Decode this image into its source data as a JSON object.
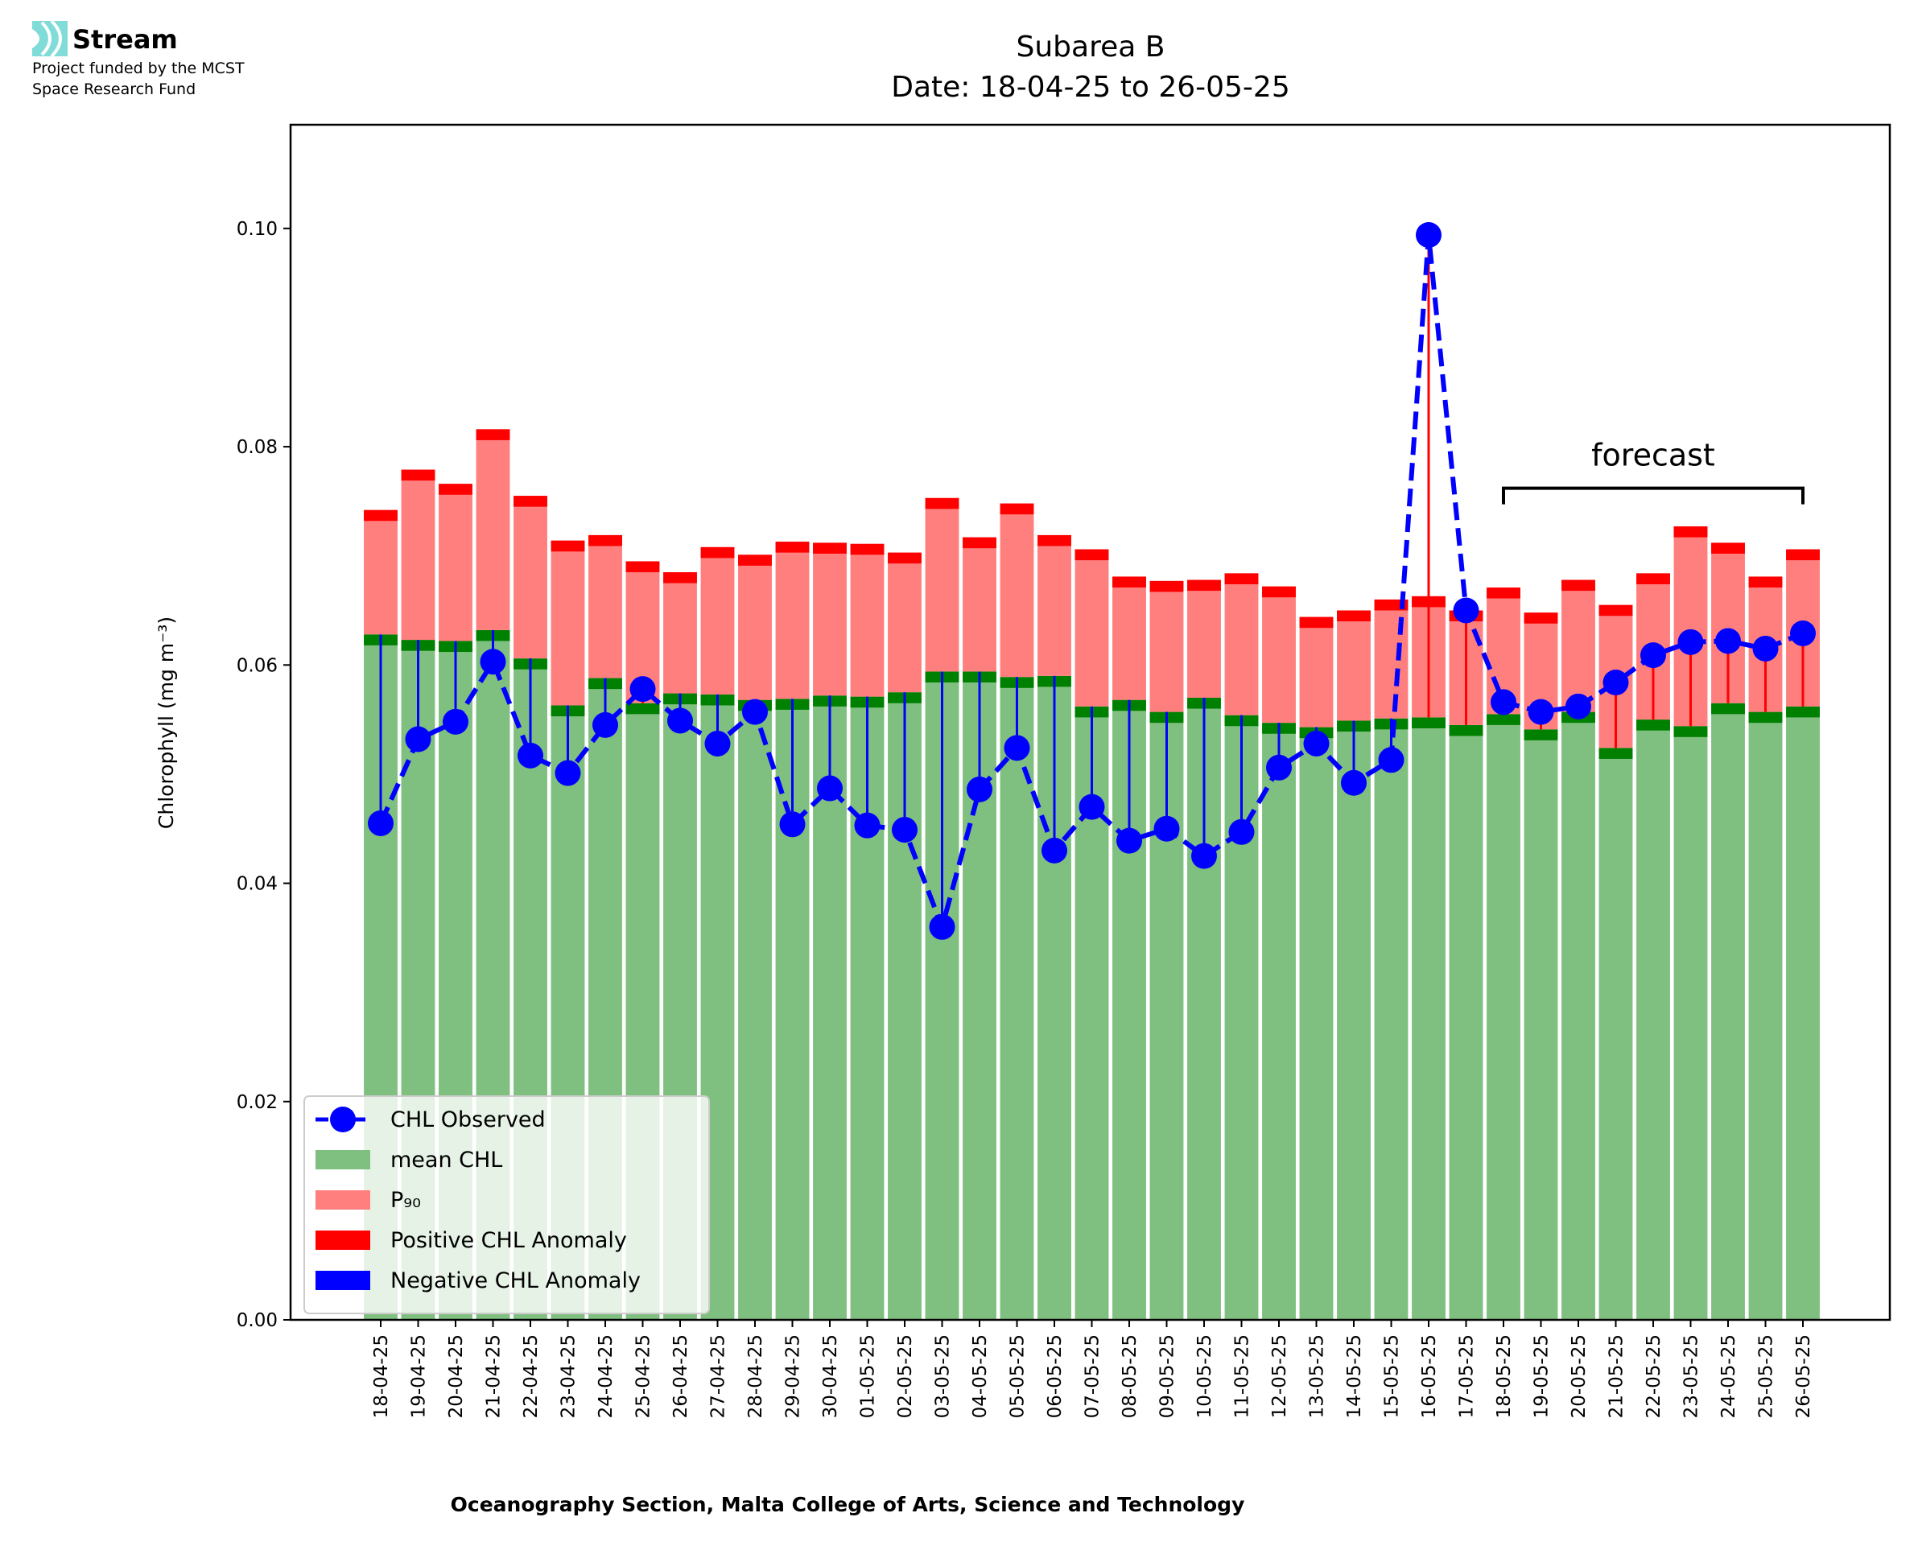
{
  "branding": {
    "logo_text": "Stream",
    "funding_line1": "Project funded by the MCST",
    "funding_line2": "Space Research Fund",
    "logo_color": "#7fdcd8"
  },
  "chart_data": {
    "type": "bar",
    "title": "Subarea B",
    "subtitle": "Date: 18-04-25 to 26-05-25",
    "xlabel": "Oceanography Section, Malta College of Arts, Science and Technology",
    "ylabel": "Chlorophyll (mg m⁻³)",
    "ylim": [
      0,
      0.1095
    ],
    "yticks": [
      "0.00",
      "0.02",
      "0.04",
      "0.06",
      "0.08",
      "0.10"
    ],
    "grid": false,
    "legend_placement": "lower-left",
    "categories": [
      "18-04-25",
      "19-04-25",
      "20-04-25",
      "21-04-25",
      "22-04-25",
      "23-04-25",
      "24-04-25",
      "25-04-25",
      "26-04-25",
      "27-04-25",
      "28-04-25",
      "29-04-25",
      "30-04-25",
      "01-05-25",
      "02-05-25",
      "03-05-25",
      "04-05-25",
      "05-05-25",
      "06-05-25",
      "07-05-25",
      "08-05-25",
      "09-05-25",
      "10-05-25",
      "11-05-25",
      "12-05-25",
      "13-05-25",
      "14-05-25",
      "15-05-25",
      "16-05-25",
      "17-05-25",
      "18-05-25",
      "19-05-25",
      "20-05-25",
      "21-05-25",
      "22-05-25",
      "23-05-25",
      "24-05-25",
      "25-05-25",
      "26-05-25"
    ],
    "series": [
      {
        "name": "CHL Observed",
        "style": "dashed line with circle markers",
        "color": "#0000ff",
        "values": [
          0.0455,
          0.0532,
          0.0548,
          0.0603,
          0.0517,
          0.0501,
          0.0545,
          0.0578,
          0.0549,
          0.0528,
          0.0557,
          0.0454,
          0.0487,
          0.0453,
          0.0449,
          0.036,
          0.0486,
          0.0524,
          0.043,
          0.047,
          0.0439,
          0.045,
          0.0425,
          0.0447,
          0.0506,
          0.0528,
          0.0492,
          0.0513,
          0.0994,
          0.065,
          0.0566,
          0.0557,
          0.0562,
          0.0584,
          0.0609,
          0.0621,
          0.0622,
          0.0615,
          0.0629
        ]
      },
      {
        "name": "mean CHL",
        "color": "#7fbf7f",
        "marker_color": "#008000",
        "values": [
          0.0628,
          0.0623,
          0.0622,
          0.0632,
          0.0606,
          0.0563,
          0.0588,
          0.0565,
          0.0574,
          0.0573,
          0.0568,
          0.0569,
          0.0572,
          0.0571,
          0.0575,
          0.0594,
          0.0594,
          0.0589,
          0.059,
          0.0562,
          0.0568,
          0.0557,
          0.057,
          0.0554,
          0.0547,
          0.0543,
          0.0549,
          0.0551,
          0.0552,
          0.0545,
          0.0555,
          0.0541,
          0.0557,
          0.0524,
          0.055,
          0.0544,
          0.0565,
          0.0557,
          0.0562
        ]
      },
      {
        "name": "P₉₀",
        "color": "#ff7f7f",
        "marker_color": "#ff0000",
        "values": [
          0.0742,
          0.0779,
          0.0766,
          0.0816,
          0.0755,
          0.0714,
          0.0719,
          0.0695,
          0.0685,
          0.0708,
          0.0701,
          0.0713,
          0.0712,
          0.0711,
          0.0703,
          0.0753,
          0.0717,
          0.0748,
          0.0719,
          0.0706,
          0.0681,
          0.0677,
          0.0678,
          0.0684,
          0.0672,
          0.0644,
          0.065,
          0.066,
          0.0663,
          0.065,
          0.0671,
          0.0648,
          0.0678,
          0.0655,
          0.0684,
          0.0727,
          0.0712,
          0.0681,
          0.0706
        ]
      }
    ],
    "anomaly_legend": [
      {
        "name": "Positive CHL Anomaly",
        "color": "#ff0000"
      },
      {
        "name": "Negative CHL Anomaly",
        "color": "#0000ff"
      }
    ],
    "annotation": {
      "text": "forecast",
      "from": "18-05-25",
      "to": "26-05-25",
      "y": 0.0762
    }
  }
}
